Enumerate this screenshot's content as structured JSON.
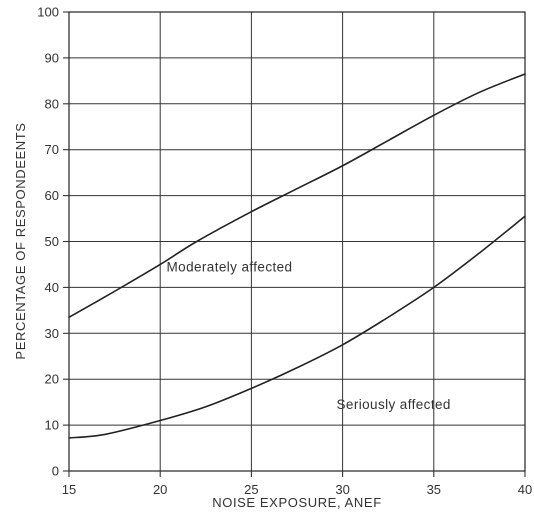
{
  "chart_data": {
    "type": "line",
    "title": "",
    "xlabel": "NOISE EXPOSURE, ANEF",
    "ylabel": "PERCENTAGE OF RESPONDEENTS",
    "xlim": [
      15,
      40
    ],
    "ylim": [
      0,
      100
    ],
    "x_ticks": [
      "15",
      "20",
      "25",
      "30",
      "35",
      "40"
    ],
    "y_ticks": [
      "0",
      "10",
      "20",
      "30",
      "40",
      "50",
      "60",
      "70",
      "80",
      "90",
      "100"
    ],
    "grid": true,
    "legend": "none",
    "line_color": "#222222",
    "series": [
      {
        "name": "Moderately affected",
        "x": [
          15,
          17,
          20,
          22,
          25,
          27.5,
          30,
          32.5,
          35,
          37.5,
          40
        ],
        "y": [
          33.5,
          38,
          45,
          50,
          56.5,
          61.5,
          66.5,
          72,
          77.5,
          82.5,
          86.5
        ]
      },
      {
        "name": "Seriously affected",
        "x": [
          15,
          17,
          20,
          22.5,
          25,
          27.5,
          30,
          32.5,
          35,
          37.5,
          40
        ],
        "y": [
          7.2,
          8,
          11,
          14,
          18,
          22.5,
          27.5,
          33.5,
          40,
          47.5,
          55.5
        ]
      }
    ],
    "annotations": [
      {
        "text": "Moderately affected",
        "x": 23.8,
        "y": 43.5
      },
      {
        "text": "Seriously affected",
        "x": 32.8,
        "y": 13.5
      }
    ]
  }
}
